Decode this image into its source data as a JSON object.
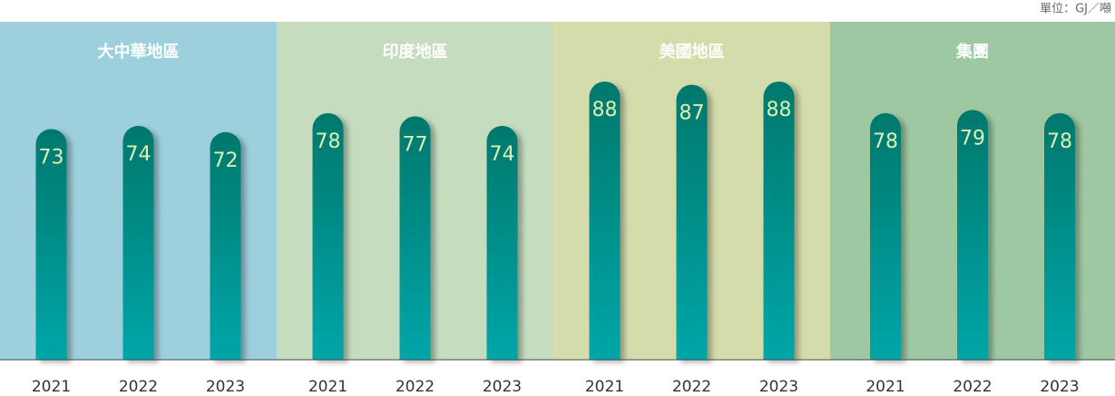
{
  "unit": "單位：GJ／噸",
  "chart_data": [
    {
      "type": "bar",
      "title": "大中華地區",
      "background": "#9dd0dc",
      "categories": [
        "2021",
        "2022",
        "2023"
      ],
      "values": [
        73,
        74,
        72
      ],
      "ylim": [
        0,
        90
      ]
    },
    {
      "type": "bar",
      "title": "印度地區",
      "background": "#c5dcbf",
      "categories": [
        "2021",
        "2022",
        "2023"
      ],
      "values": [
        78,
        77,
        74
      ],
      "ylim": [
        0,
        90
      ]
    },
    {
      "type": "bar",
      "title": "美國地區",
      "background": "#d5dcab",
      "categories": [
        "2021",
        "2022",
        "2023"
      ],
      "values": [
        88,
        87,
        88
      ],
      "ylim": [
        0,
        90
      ]
    },
    {
      "type": "bar",
      "title": "集團",
      "background": "#9ec8a2",
      "categories": [
        "2021",
        "2022",
        "2023"
      ],
      "values": [
        78,
        79,
        78
      ],
      "ylim": [
        0,
        90
      ]
    }
  ]
}
